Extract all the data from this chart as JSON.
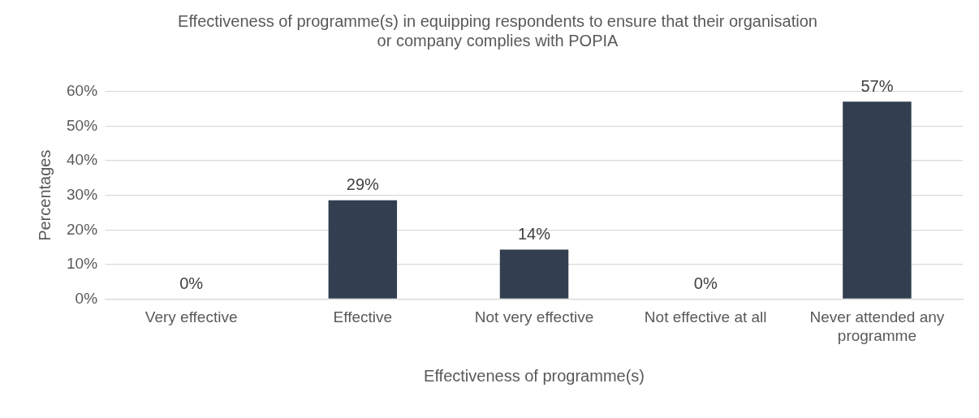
{
  "chart_data": {
    "type": "bar",
    "title": "Effectiveness of programme(s) in equipping respondents to ensure that their organisation or company complies with POPIA",
    "xlabel": "Effectiveness of programme(s)",
    "ylabel": "Percentages",
    "categories": [
      "Very effective",
      "Effective",
      "Not very effective",
      "Not effective at all",
      "Never attended any programme"
    ],
    "values": [
      0,
      28.6,
      14.3,
      0,
      57.1
    ],
    "value_labels": [
      "0%",
      "29%",
      "14%",
      "0%",
      "57%"
    ],
    "color": "#333f50",
    "ylim": [
      0,
      60
    ],
    "yticks": [
      {
        "value": 0,
        "label": "0%"
      },
      {
        "value": 10,
        "label": "10%"
      },
      {
        "value": 20,
        "label": "20%"
      },
      {
        "value": 30,
        "label": "30%"
      },
      {
        "value": 40,
        "label": "40%"
      },
      {
        "value": 50,
        "label": "50%"
      },
      {
        "value": 60,
        "label": "60%"
      }
    ],
    "grid": "y",
    "legend": false
  }
}
